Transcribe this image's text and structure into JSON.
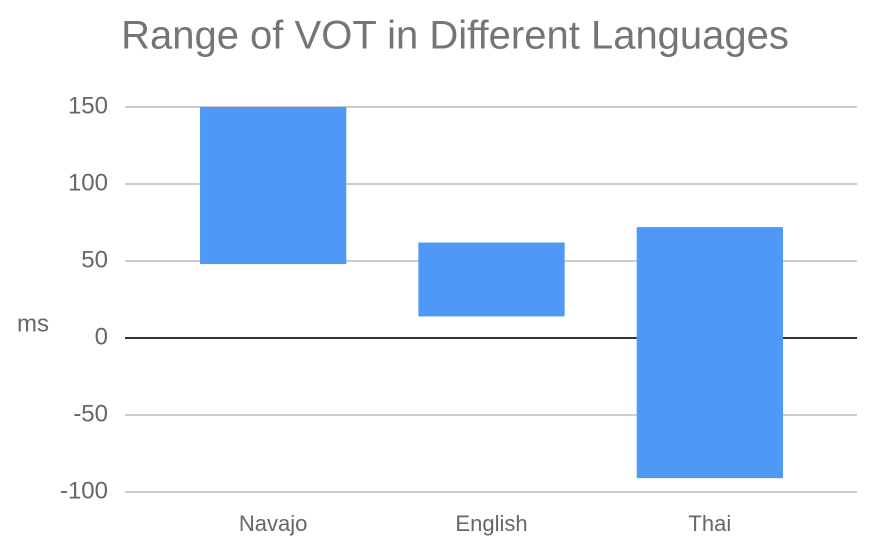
{
  "chart_data": {
    "type": "range",
    "title": "Range of VOT in Different Languages",
    "y_label": "ms",
    "categories": [
      "Navajo",
      "English",
      "Thai"
    ],
    "low": [
      48,
      14,
      -91
    ],
    "high": [
      150,
      62,
      72
    ],
    "color": "#4f98f5",
    "ylim": [
      -100,
      150
    ],
    "yticks": [
      -100,
      -50,
      0,
      50,
      100,
      150
    ],
    "grid": true
  }
}
